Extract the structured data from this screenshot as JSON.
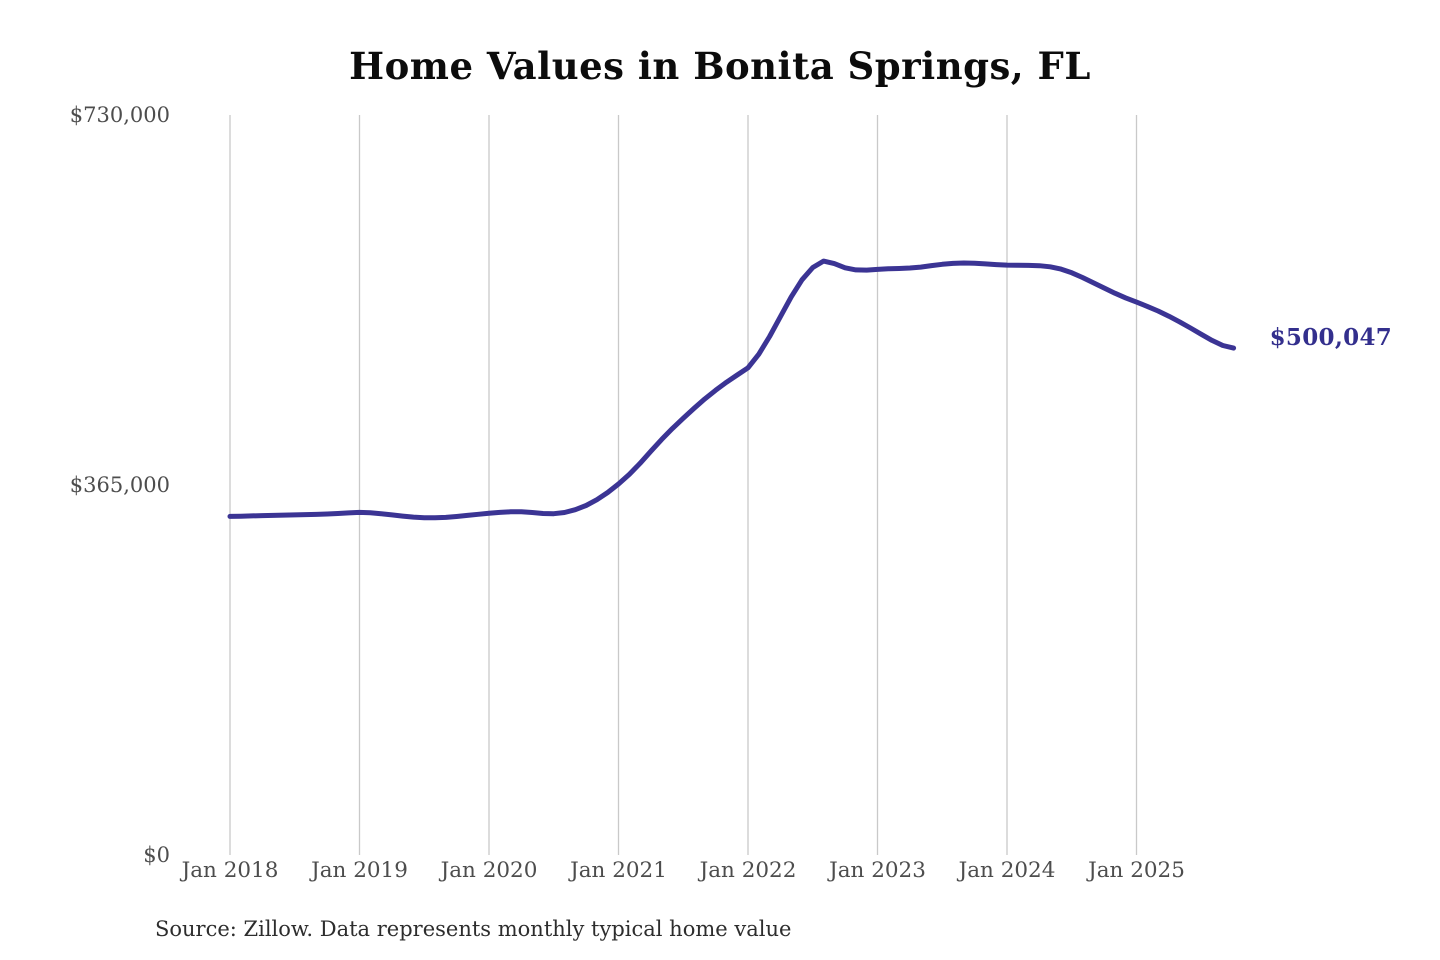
{
  "chart": {
    "title": "Home Values in Bonita Springs, FL",
    "source_note": "Source: Zillow. Data represents monthly typical home value",
    "end_label": "$500,047",
    "colors": {
      "line": "#3b3494",
      "end_label": "#332f8d",
      "grid": "#c9c9c9",
      "axis_text": "#4d4d4d",
      "title_text": "#0c0c0c",
      "background": "#ffffff"
    }
  },
  "chart_data": {
    "type": "line",
    "title": "Home Values in Bonita Springs, FL",
    "xlabel": "",
    "ylabel": "",
    "x_start": "Jan 2018",
    "x_end": "Oct 2025",
    "x_interval": "month",
    "x_tick_labels": [
      "Jan 2018",
      "Jan 2019",
      "Jan 2020",
      "Jan 2021",
      "Jan 2022",
      "Jan 2023",
      "Jan 2024",
      "Jan 2025"
    ],
    "y_ticks": [
      {
        "label": "$0",
        "value": 0
      },
      {
        "label": "$365,000",
        "value": 365000
      },
      {
        "label": "$730,000",
        "value": 730000
      }
    ],
    "ylim": [
      0,
      730000
    ],
    "grid": "vertical-only",
    "legend": "none",
    "final_value": 500047,
    "final_value_label": "$500,047",
    "series": [
      {
        "name": "Monthly typical home value",
        "values": [
          334000,
          334200,
          334500,
          334800,
          335000,
          335300,
          335500,
          335800,
          336000,
          336400,
          336900,
          337500,
          338000,
          337600,
          336700,
          335500,
          334300,
          333300,
          332700,
          332600,
          333000,
          333900,
          335000,
          336100,
          337100,
          338000,
          338600,
          338700,
          337900,
          336900,
          336700,
          337900,
          340600,
          344800,
          350500,
          357600,
          366000,
          375500,
          386400,
          398300,
          410000,
          420800,
          430900,
          440600,
          449900,
          458400,
          466300,
          473500,
          480600,
          494000,
          511500,
          531000,
          550600,
          567400,
          579600,
          585900,
          583400,
          579300,
          577200,
          577000,
          577700,
          578300,
          578600,
          579100,
          580000,
          581400,
          582700,
          583600,
          584000,
          583700,
          583100,
          582400,
          581900,
          581700,
          581600,
          581300,
          580300,
          578000,
          574300,
          569700,
          564600,
          559300,
          554200,
          549600,
          545400,
          541200,
          536600,
          531500,
          525900,
          519900,
          513700,
          507600,
          502600,
          500047
        ]
      }
    ]
  }
}
